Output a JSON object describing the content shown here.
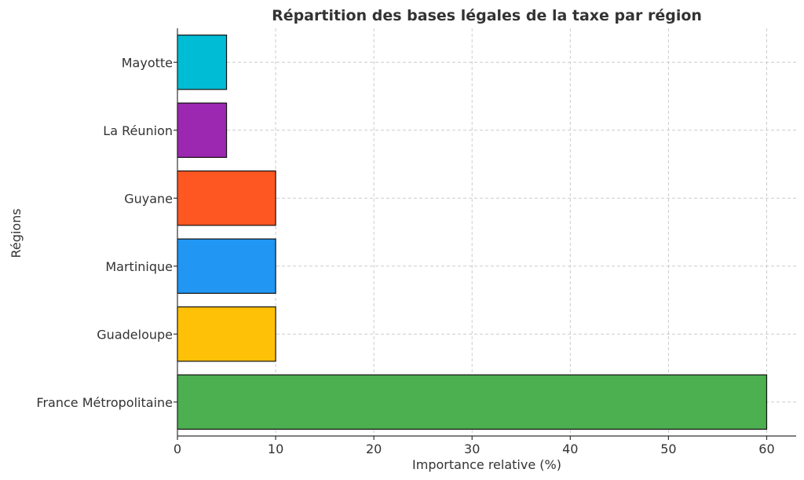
{
  "chart_data": {
    "type": "bar",
    "orientation": "horizontal",
    "title": "Répartition des bases légales de la taxe par région",
    "xlabel": "Importance relative (%)",
    "ylabel": "Régions",
    "xlim": [
      0,
      63
    ],
    "xticks": [
      0,
      10,
      20,
      30,
      40,
      50,
      60
    ],
    "grid": true,
    "categories": [
      "France Métropolitaine",
      "Guadeloupe",
      "Martinique",
      "Guyane",
      "La Réunion",
      "Mayotte"
    ],
    "values": [
      60,
      10,
      10,
      10,
      5,
      5
    ],
    "colors": [
      "#4caf50",
      "#ffc107",
      "#2196f3",
      "#ff5722",
      "#9c27b0",
      "#00bcd4"
    ]
  }
}
